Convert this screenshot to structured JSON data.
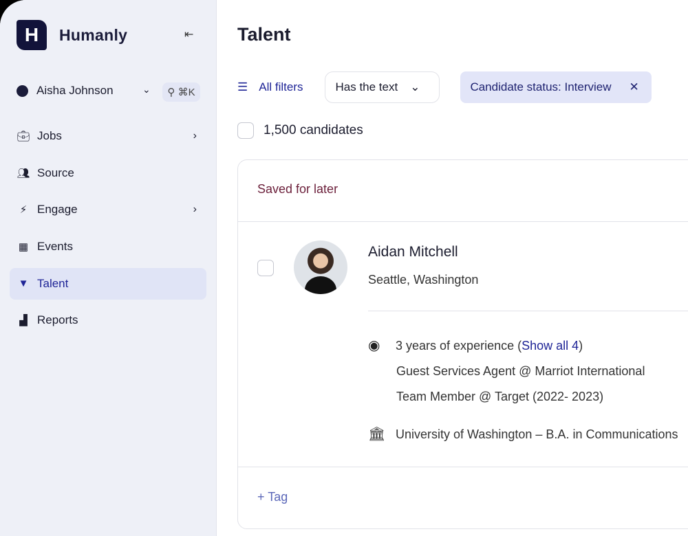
{
  "sidebar": {
    "brand": "Humanly",
    "logo_letter": "H",
    "user": "Aisha Johnson",
    "search_shortcut": "⌘K",
    "items": [
      {
        "label": "Jobs",
        "icon": "briefcase-icon"
      },
      {
        "label": "Source",
        "icon": "people-icon"
      },
      {
        "label": "Engage",
        "icon": "bolt-icon"
      },
      {
        "label": "Events",
        "icon": "calendar-icon"
      },
      {
        "label": "Talent",
        "icon": "funnel-icon",
        "active": true
      },
      {
        "label": "Reports",
        "icon": "bar-chart-icon"
      }
    ]
  },
  "main": {
    "title": "Talent",
    "all_filters": "All filters",
    "filter_dropdown": "Has the text",
    "chip": "Candidate status: Interview",
    "count": "1,500 candidates",
    "card": {
      "section": "Saved for later",
      "name": "Aidan Mitchell",
      "location": "Seattle, Washington",
      "experience_prefix": "3 years of experience (",
      "show_all": "Show all 4",
      "experience_suffix": ")",
      "jobs": [
        "Guest Services Agent @ Marriot International",
        "Team Member @ Target (2022- 2023)"
      ],
      "education": "University of Washington – B.A. in Communications",
      "tag": "+ Tag"
    }
  },
  "colors": {
    "accent": "#1e2496",
    "sidebar_bg": "#eef0f7",
    "chip_bg": "#e2e5f8"
  }
}
